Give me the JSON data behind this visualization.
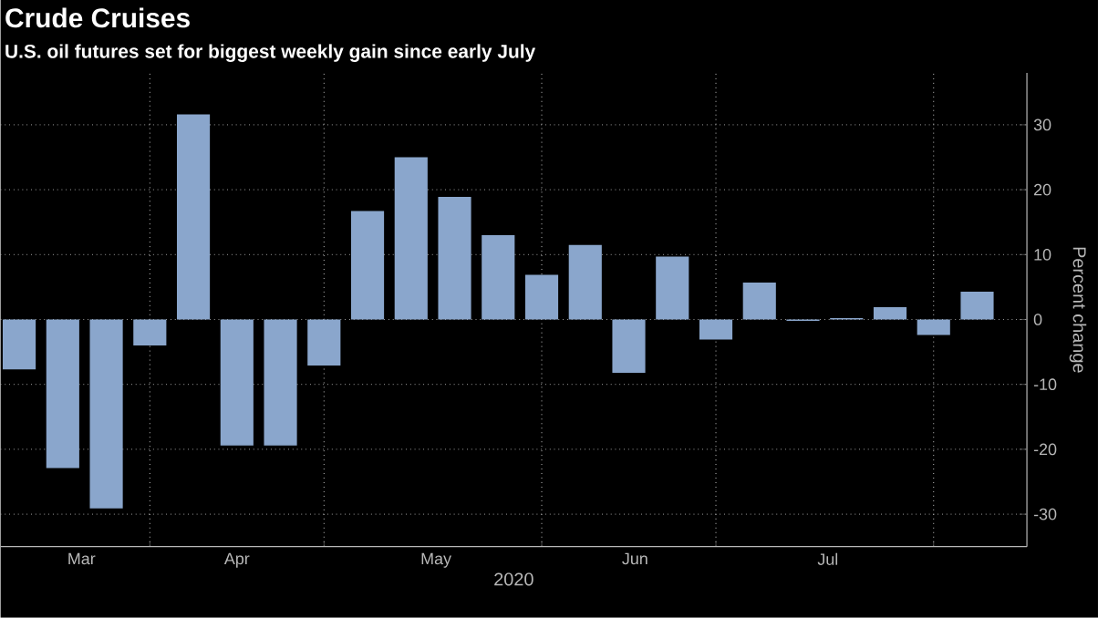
{
  "chart_data": {
    "type": "bar",
    "title": "Crude Cruises",
    "subtitle": "U.S. oil futures set for biggest weekly gain since early July",
    "xlabel": "2020",
    "ylabel": "Percent change",
    "x": [
      "2020-03-11",
      "2020-03-18",
      "2020-03-25",
      "2020-04-01",
      "2020-04-08",
      "2020-04-15",
      "2020-04-22",
      "2020-04-29",
      "2020-05-06",
      "2020-05-13",
      "2020-05-20",
      "2020-05-27",
      "2020-06-03",
      "2020-06-10",
      "2020-06-17",
      "2020-06-24",
      "2020-07-01",
      "2020-07-08",
      "2020-07-15",
      "2020-07-22",
      "2020-07-29",
      "2020-08-05",
      "2020-08-12"
    ],
    "values": [
      -7.7,
      -22.9,
      -29.1,
      -4.0,
      31.6,
      -19.4,
      -19.4,
      -7.1,
      16.7,
      25.0,
      18.9,
      13.0,
      6.9,
      11.5,
      -8.2,
      9.7,
      -3.1,
      5.7,
      -0.2,
      0.2,
      1.9,
      -2.4,
      4.3
    ],
    "color": "#8aa6cc",
    "xlim": [
      "2020-03-08",
      "2020-08-20"
    ],
    "ylim": [
      -35,
      38
    ],
    "xticks": [
      {
        "value": "2020-04-01",
        "label": null
      },
      {
        "value": "2020-04-29",
        "label": null
      },
      {
        "value": "2020-06-03",
        "label": null
      },
      {
        "value": "2020-07-01",
        "label": null
      },
      {
        "value": "2020-08-05",
        "label": null
      },
      {
        "value": "2020-03-21",
        "label": "Mar"
      },
      {
        "value": "2020-04-15",
        "label": "Apr"
      },
      {
        "value": "2020-05-17",
        "label": "May"
      },
      {
        "value": "2020-06-18",
        "label": "Jun"
      },
      {
        "value": "2020-07-19",
        "label": "Jul"
      }
    ],
    "yticks": [
      -30,
      -20,
      -10,
      0,
      10,
      20,
      30
    ],
    "grid": true
  }
}
